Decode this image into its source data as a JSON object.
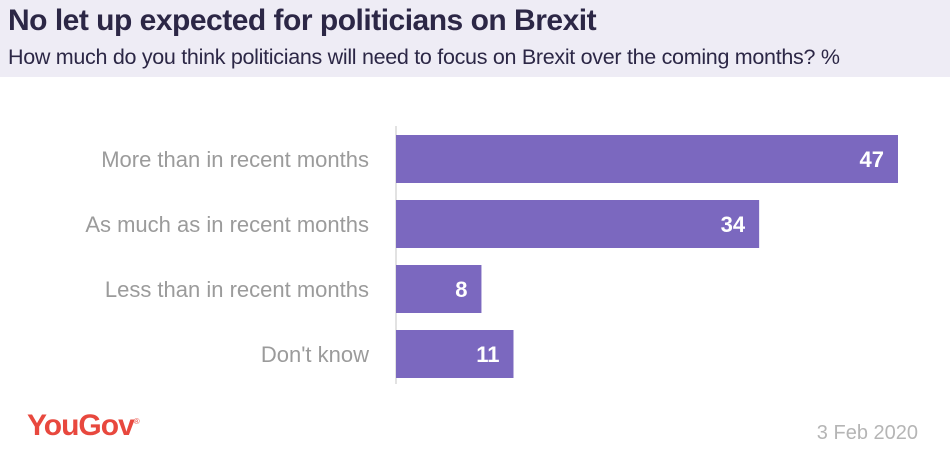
{
  "chart_data": {
    "type": "bar",
    "orientation": "horizontal",
    "title": "No let up expected for politicians on Brexit",
    "subtitle": "How much do you think politicians will need to focus on Brexit over the coming months? %",
    "categories": [
      "More than in recent months",
      "As much as in recent months",
      "Less than in recent months",
      "Don't know"
    ],
    "values": [
      47,
      34,
      8,
      11
    ],
    "xlim": [
      0,
      47
    ],
    "bar_color": "#7b68bf",
    "grid": false
  },
  "footer": {
    "logo": "YouGov",
    "date": "3 Feb 2020"
  }
}
